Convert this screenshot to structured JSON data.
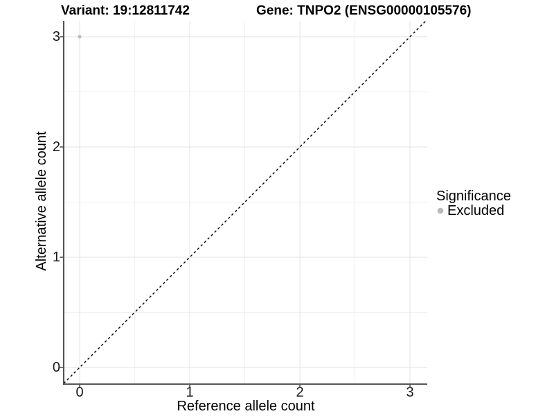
{
  "titles": {
    "variant": "Variant: 19:12811742",
    "gene": "Gene: TNPO2 (ENSG00000105576)"
  },
  "axes": {
    "x": {
      "label": "Reference allele count",
      "tick_labels": [
        "0",
        "1",
        "2",
        "3"
      ]
    },
    "y": {
      "label": "Alternative allele count",
      "tick_labels": [
        "3",
        "2",
        "1",
        "0"
      ]
    }
  },
  "legend": {
    "title": "Significance",
    "items": [
      {
        "label": "Excluded",
        "color": "#b9b9b9"
      }
    ]
  },
  "chart_data": {
    "type": "scatter",
    "title": "Variant: 19:12811742 — Gene: TNPO2 (ENSG00000105576)",
    "xlabel": "Reference allele count",
    "ylabel": "Alternative allele count",
    "x_ticks": [
      0,
      1,
      2,
      3
    ],
    "y_ticks": [
      0,
      1,
      2,
      3
    ],
    "xlim": [
      -0.145,
      3.145
    ],
    "ylim": [
      -0.145,
      3.145
    ],
    "grid": "major+minor",
    "legend_position": "right",
    "series": [
      {
        "name": "Excluded",
        "color": "#b9b9b9",
        "points": [
          {
            "x": 0,
            "y": 3
          }
        ]
      }
    ],
    "reference_line": {
      "kind": "identity",
      "style": "dashed",
      "color": "#000000"
    },
    "colors": {
      "grid_major": "#e3e3e3",
      "grid_minor": "#efefef",
      "axis_line": "#3f3f3f"
    }
  }
}
